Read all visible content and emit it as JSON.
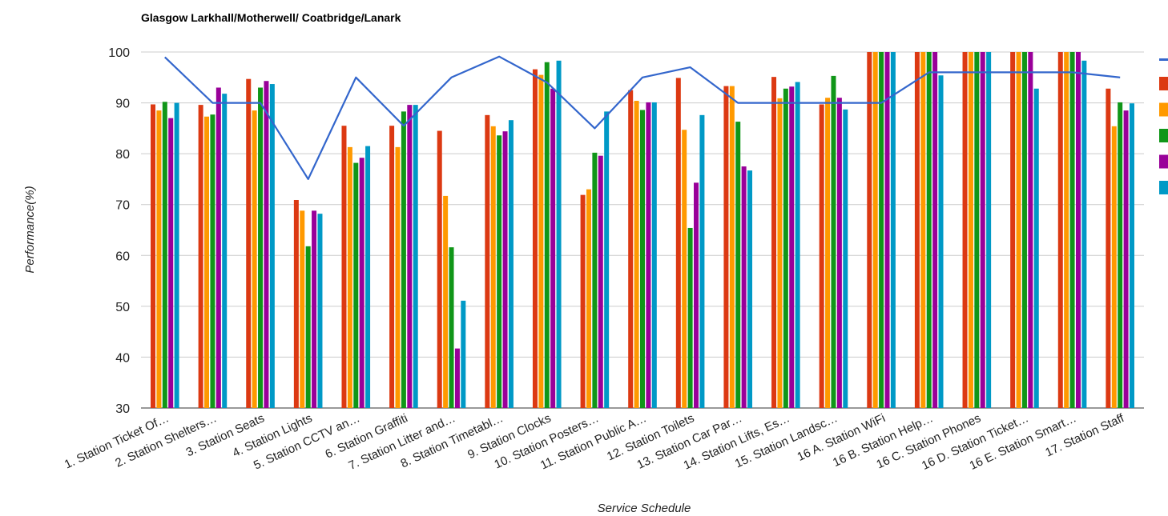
{
  "chart_data": {
    "type": "bar",
    "title": "Glasgow Larkhall/Motherwell/ Coatbridge/Lanark",
    "xlabel": "Service Schedule",
    "ylabel": "Performance(%)",
    "ylim": [
      30,
      100
    ],
    "yticks": [
      30,
      40,
      50,
      60,
      70,
      80,
      90,
      100
    ],
    "grid": true,
    "legend_position": "right",
    "categories": [
      "1. Station Ticket Of…",
      "2. Station Shelters…",
      "3. Station Seats",
      "4. Station Lights",
      "5. Station CCTV an…",
      "6. Station Graffiti",
      "7. Station Litter and…",
      "8. Station Timetabl…",
      "9. Station Clocks",
      "10. Station Posters…",
      "11. Station Public A…",
      "12. Station Toilets",
      "13. Station Car Par…",
      "14. Station Lifts, Es…",
      "15. Station Landsc…",
      "16 A. Station WiFi",
      "16 B. Station Help…",
      "16 C. Station Phones",
      "16 D. Station Ticket…",
      "16 E. Station Smart…",
      "17. Station Staff"
    ],
    "series": [
      {
        "color": "#dc3912",
        "values": [
          89.7,
          89.6,
          94.7,
          70.9,
          85.5,
          85.5,
          84.5,
          87.6,
          96.6,
          71.9,
          92.5,
          94.9,
          93.3,
          95.1,
          89.7,
          100,
          100,
          100,
          100,
          100,
          92.8
        ]
      },
      {
        "color": "#ff9900",
        "values": [
          88.5,
          87.3,
          88.5,
          68.8,
          81.3,
          81.3,
          71.7,
          85.4,
          95.5,
          73.0,
          90.4,
          84.7,
          93.3,
          90.9,
          91.0,
          100,
          100,
          100,
          100,
          100,
          85.4
        ]
      },
      {
        "color": "#109618",
        "values": [
          90.2,
          87.7,
          93.0,
          61.8,
          78.2,
          88.3,
          61.6,
          83.6,
          98.0,
          80.2,
          88.6,
          65.4,
          86.3,
          92.8,
          95.3,
          100,
          100,
          100,
          100,
          100,
          90.1
        ]
      },
      {
        "color": "#990099",
        "values": [
          87.0,
          93.0,
          94.3,
          68.8,
          79.2,
          89.6,
          41.7,
          84.4,
          92.8,
          79.6,
          90.1,
          74.3,
          77.5,
          93.2,
          91.0,
          100,
          100,
          100,
          100,
          100,
          88.5
        ]
      },
      {
        "color": "#0099c6",
        "values": [
          90.0,
          91.8,
          93.7,
          68.2,
          81.5,
          89.6,
          51.1,
          86.6,
          98.3,
          88.3,
          90.1,
          87.6,
          76.7,
          94.1,
          88.7,
          100,
          95.4,
          100,
          92.8,
          98.3,
          89.9
        ]
      }
    ],
    "line_series": {
      "color": "#3366cc",
      "values": [
        99.0,
        90.0,
        90.0,
        75.0,
        95.0,
        85.5,
        95.0,
        99.1,
        94.0,
        85.0,
        95.0,
        97.0,
        90.0,
        90.0,
        90.0,
        90.0,
        96.0,
        96.0,
        96.0,
        96.0,
        95.0
      ]
    }
  }
}
